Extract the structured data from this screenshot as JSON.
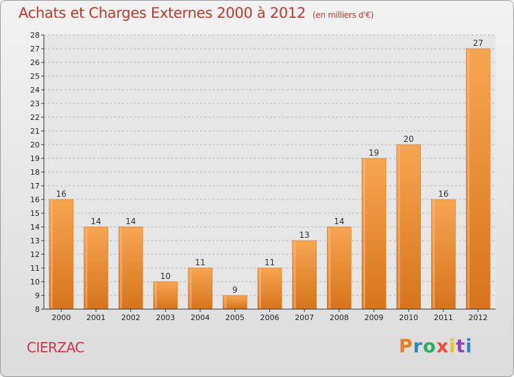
{
  "title": "Achats et Charges Externes 2000 à 2012",
  "subtitle": "(en milliers d'€)",
  "commune": "CIERZAC",
  "logo": {
    "letters": [
      "P",
      "r",
      "o",
      "x",
      "i",
      "t",
      "i"
    ],
    "colors": [
      "#e67e22",
      "#2e86c1",
      "#27ae60",
      "#e74c3c",
      "#f1c40f",
      "#8e44ad",
      "#2e86c1"
    ]
  },
  "chart_data": {
    "type": "bar",
    "title": "Achats et Charges Externes 2000 à 2012",
    "categories": [
      "2000",
      "2001",
      "2002",
      "2003",
      "2004",
      "2005",
      "2006",
      "2007",
      "2008",
      "2009",
      "2010",
      "2011",
      "2012"
    ],
    "values": [
      16,
      14,
      14,
      10,
      11,
      9,
      11,
      13,
      14,
      19,
      20,
      16,
      27
    ],
    "ylim": [
      8,
      28
    ],
    "yticks": [
      8,
      9,
      10,
      11,
      12,
      13,
      14,
      15,
      16,
      17,
      18,
      19,
      20,
      21,
      22,
      23,
      24,
      25,
      26,
      27,
      28
    ],
    "grid": true,
    "bar_color": "#f0913a"
  }
}
